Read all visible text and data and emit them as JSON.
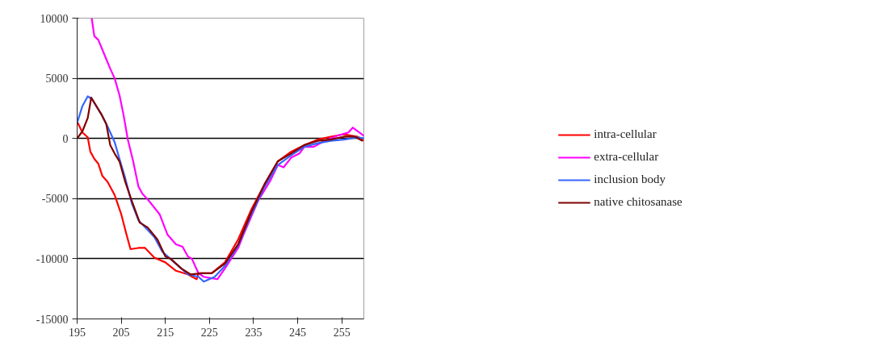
{
  "chart_data": {
    "type": "line",
    "xlim": [
      195,
      260
    ],
    "xticks": [
      195,
      205,
      215,
      225,
      235,
      245,
      255
    ],
    "ylim": [
      -15000,
      10000
    ],
    "yticks": [
      -15000,
      -10000,
      -5000,
      0,
      5000,
      10000
    ],
    "grid": "y",
    "legend": "right",
    "series": [
      {
        "name": "intra-cellular",
        "color": "#ff0000",
        "x": [
          195,
          196.2,
          197.4,
          198,
          198.9,
          199.8,
          200.7,
          201.9,
          203.5,
          205,
          206.2,
          207.1,
          208.9,
          210.4,
          212.5,
          215,
          217.4,
          220.1,
          222.1,
          222.5,
          225.5,
          228.5,
          231.5,
          234.5,
          237.5,
          240.5,
          243.5,
          246.5,
          249.5,
          252.5,
          255.5,
          258.6,
          260
        ],
        "values": [
          1400,
          500,
          100,
          -1100,
          -1700,
          -2100,
          -3100,
          -3600,
          -4700,
          -6300,
          -8000,
          -9200,
          -9100,
          -9100,
          -9900,
          -10300,
          -11000,
          -11300,
          -11700,
          -11200,
          -11200,
          -10300,
          -8400,
          -5900,
          -3800,
          -1900,
          -1100,
          -550,
          -100,
          150,
          350,
          150,
          -200
        ]
      },
      {
        "name": "extra-cellular",
        "color": "#ff00ff",
        "x": [
          198.3,
          198.9,
          199.8,
          201.6,
          202.5,
          203.5,
          204.6,
          205.5,
          206.5,
          207.7,
          208.9,
          209.8,
          211.3,
          213.7,
          215.5,
          217.4,
          218.9,
          220.1,
          221,
          222.5,
          223.7,
          226.8,
          228.5,
          231.5,
          232.7,
          236,
          238.8,
          240.5,
          241.8,
          243.5,
          245.4,
          246.5,
          248.6,
          251.1,
          254.1,
          256.5,
          257.5,
          259.7,
          260
        ],
        "values": [
          10000,
          8500,
          8200,
          6600,
          5800,
          5000,
          3600,
          2000,
          -100,
          -1900,
          -4000,
          -4600,
          -5200,
          -6300,
          -8000,
          -8800,
          -9000,
          -9800,
          -10000,
          -11200,
          -11500,
          -11700,
          -10800,
          -9100,
          -8000,
          -5200,
          -3500,
          -2200,
          -2400,
          -1600,
          -1250,
          -700,
          -700,
          -200,
          250,
          500,
          900,
          300,
          200
        ]
      },
      {
        "name": "inclusion body",
        "color": "#3366ff",
        "x": [
          195,
          196.2,
          197.4,
          198.3,
          200.5,
          201.9,
          203.5,
          204.6,
          205.9,
          207.4,
          208.9,
          210.7,
          212.5,
          214.3,
          216.1,
          218.6,
          220.1,
          222.5,
          223.7,
          226.2,
          228.5,
          231.5,
          234.5,
          237.5,
          240.5,
          243.5,
          246.5,
          249.5,
          252.5,
          255.5,
          258.6,
          260
        ],
        "values": [
          1300,
          2700,
          3500,
          3300,
          2000,
          1000,
          -300,
          -1700,
          -3300,
          -5400,
          -6800,
          -7500,
          -8200,
          -9400,
          -10000,
          -10800,
          -11300,
          -11500,
          -11900,
          -11500,
          -10600,
          -8900,
          -6300,
          -4000,
          -2200,
          -1400,
          -700,
          -400,
          -200,
          -100,
          100,
          0
        ]
      },
      {
        "name": "native chitosanase",
        "color": "#800000",
        "x": [
          195,
          196.2,
          197.4,
          198.2,
          200.5,
          201.6,
          202.5,
          203.5,
          204.6,
          205.9,
          207.4,
          209.2,
          211,
          213.2,
          215,
          216.2,
          218.6,
          220.7,
          223.2,
          225.5,
          228.5,
          231.5,
          234.5,
          237.5,
          240.5,
          243.5,
          246.5,
          249.5,
          252.5,
          255.5,
          258,
          259.7
        ],
        "values": [
          0,
          600,
          1700,
          3400,
          2000,
          1200,
          -550,
          -1250,
          -1900,
          -3600,
          -5200,
          -7000,
          -7400,
          -8400,
          -9800,
          -10000,
          -10800,
          -11300,
          -11200,
          -11200,
          -10400,
          -8800,
          -6100,
          -3800,
          -1900,
          -1250,
          -550,
          -200,
          -100,
          150,
          150,
          -200
        ]
      }
    ]
  }
}
